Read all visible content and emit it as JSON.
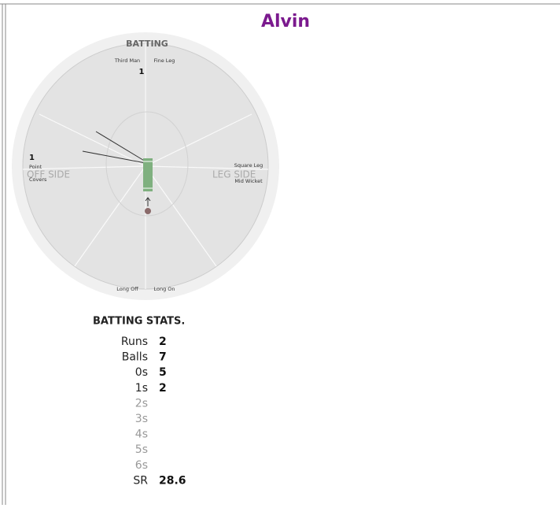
{
  "player": "Alvin",
  "wheel": {
    "heading": "BATTING",
    "zones": [
      "Third Man",
      "Fine Leg",
      "Square Leg",
      "Mid Wicket",
      "Long On",
      "Long Off",
      "Covers",
      "Point"
    ],
    "sides": [
      "OFF SIDE",
      "LEG SIDE"
    ],
    "counts": [
      "1",
      "1"
    ]
  },
  "stats": {
    "title": "BATTING STATS.",
    "rows": [
      [
        "Runs",
        "2"
      ],
      [
        "Balls",
        "7"
      ],
      [
        "0s",
        "5"
      ],
      [
        "1s",
        "2"
      ],
      [
        "2s"
      ],
      [
        "3s"
      ],
      [
        "4s"
      ],
      [
        "5s"
      ],
      [
        "6s"
      ],
      [
        "SR",
        "28.6"
      ]
    ]
  }
}
